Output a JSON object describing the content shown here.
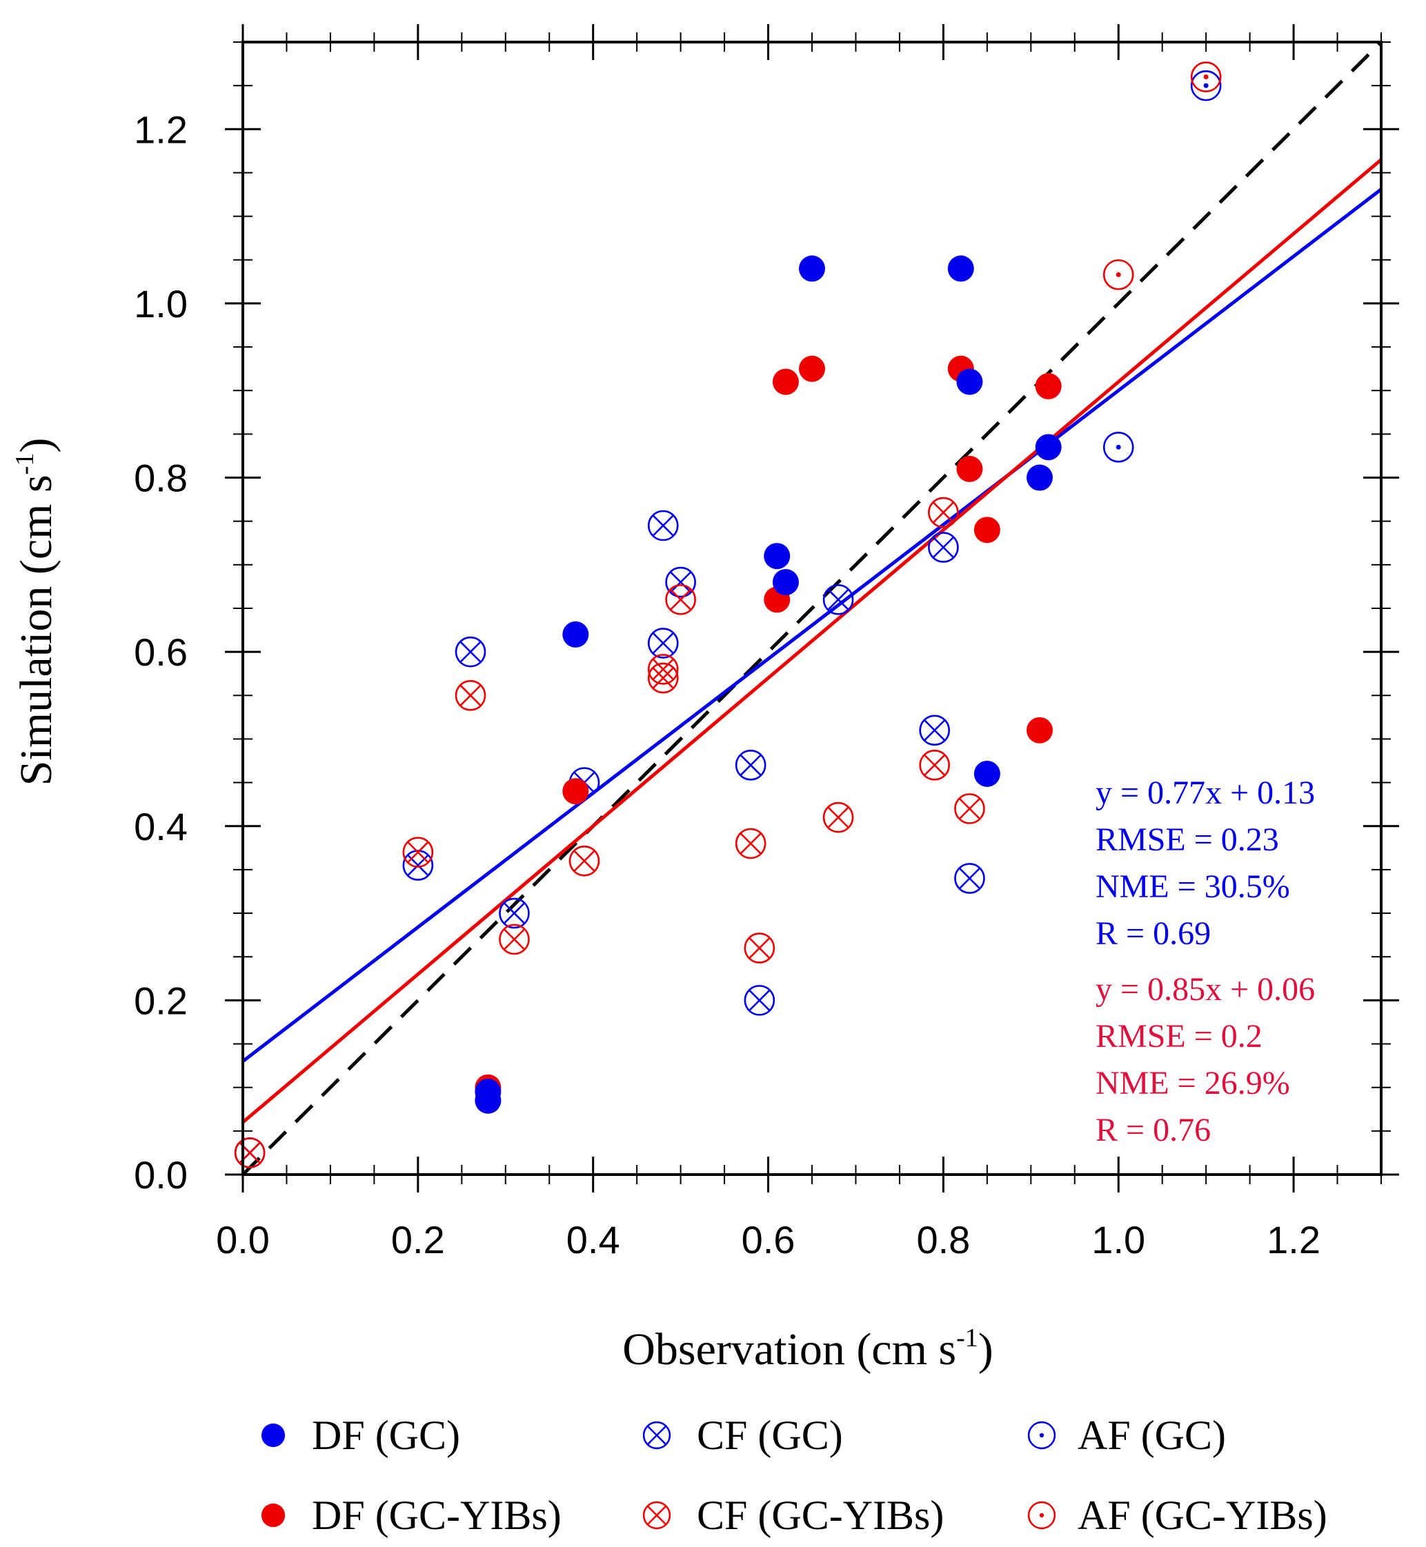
{
  "chart_data": {
    "type": "scatter",
    "title": "",
    "xlabel": "Observation (cm s-1)",
    "ylabel": "Simulation (cm s-1)",
    "xlabel_parts": {
      "base": "Observation (cm s",
      "sup": "-1",
      "end": ")"
    },
    "ylabel_parts": {
      "base": "Simulation (cm s",
      "sup": "-1",
      "end": ")"
    },
    "xlim": [
      0,
      1.3
    ],
    "ylim": [
      0,
      1.3
    ],
    "xticks": [
      "0.0",
      "0.2",
      "0.4",
      "0.6",
      "0.8",
      "1.0",
      "1.2"
    ],
    "yticks": [
      "0.0",
      "0.2",
      "0.4",
      "0.6",
      "0.8",
      "1.0",
      "1.2"
    ],
    "colors": {
      "gc": "#0000ee",
      "yibs": "#ee0000",
      "stats_yibs": "#e0103c",
      "one_to_one": "#000000"
    },
    "series": [
      {
        "name": "DF (GC)",
        "marker": "filled",
        "color": "#0000ee",
        "points": [
          [
            0.28,
            0.085
          ],
          [
            0.28,
            0.095
          ],
          [
            0.38,
            0.62
          ],
          [
            0.61,
            0.71
          ],
          [
            0.62,
            0.68
          ],
          [
            0.65,
            1.04
          ],
          [
            0.82,
            1.04
          ],
          [
            0.83,
            0.91
          ],
          [
            0.85,
            0.46
          ],
          [
            0.91,
            0.8
          ],
          [
            0.92,
            0.835
          ]
        ]
      },
      {
        "name": "DF (GC-YIBs)",
        "marker": "filled",
        "color": "#ee0000",
        "points": [
          [
            0.28,
            0.085
          ],
          [
            0.28,
            0.1
          ],
          [
            0.38,
            0.44
          ],
          [
            0.61,
            0.66
          ],
          [
            0.62,
            0.91
          ],
          [
            0.65,
            0.925
          ],
          [
            0.82,
            0.925
          ],
          [
            0.83,
            0.81
          ],
          [
            0.85,
            0.74
          ],
          [
            0.91,
            0.51
          ],
          [
            0.92,
            0.905
          ]
        ]
      },
      {
        "name": "CF (GC)",
        "marker": "cross",
        "color": "#0000ee",
        "points": [
          [
            0.008,
            0.025
          ],
          [
            0.2,
            0.355
          ],
          [
            0.26,
            0.6
          ],
          [
            0.31,
            0.3
          ],
          [
            0.39,
            0.45
          ],
          [
            0.48,
            0.745
          ],
          [
            0.48,
            0.61
          ],
          [
            0.5,
            0.68
          ],
          [
            0.58,
            0.47
          ],
          [
            0.59,
            0.2
          ],
          [
            0.68,
            0.66
          ],
          [
            0.79,
            0.51
          ],
          [
            0.8,
            0.72
          ],
          [
            0.83,
            0.34
          ]
        ]
      },
      {
        "name": "CF (GC-YIBs)",
        "marker": "cross",
        "color": "#ee0000",
        "points": [
          [
            0.008,
            0.025
          ],
          [
            0.2,
            0.37
          ],
          [
            0.26,
            0.55
          ],
          [
            0.31,
            0.27
          ],
          [
            0.39,
            0.36
          ],
          [
            0.48,
            0.58
          ],
          [
            0.48,
            0.57
          ],
          [
            0.5,
            0.66
          ],
          [
            0.58,
            0.38
          ],
          [
            0.59,
            0.26
          ],
          [
            0.68,
            0.41
          ],
          [
            0.79,
            0.47
          ],
          [
            0.8,
            0.76
          ],
          [
            0.83,
            0.42
          ]
        ]
      },
      {
        "name": "AF (GC)",
        "marker": "dot",
        "color": "#0000ee",
        "points": [
          [
            1.0,
            0.835
          ],
          [
            1.1,
            1.25
          ]
        ]
      },
      {
        "name": "AF (GC-YIBs)",
        "marker": "dot",
        "color": "#ee0000",
        "points": [
          [
            1.0,
            1.033
          ],
          [
            1.1,
            1.26
          ]
        ]
      }
    ],
    "fits": [
      {
        "name": "GC fit",
        "slope": 0.77,
        "intercept": 0.13,
        "color": "#0000ee"
      },
      {
        "name": "GC-YIBs fit",
        "slope": 0.85,
        "intercept": 0.06,
        "color": "#ee0000"
      }
    ],
    "one_to_one": {
      "slope": 1,
      "intercept": 0,
      "style": "dashed"
    },
    "annotations": {
      "gc": [
        "y = 0.77x + 0.13",
        "RMSE = 0.23",
        "NME = 30.5%",
        "R = 0.69"
      ],
      "yibs": [
        "y = 0.85x + 0.06",
        "RMSE = 0.2",
        "NME = 26.9%",
        "R = 0.76"
      ]
    },
    "legend": {
      "placement": "bottom",
      "items": [
        "DF (GC)",
        "CF (GC)",
        "AF (GC)",
        "DF (GC-YIBs)",
        "CF (GC-YIBs)",
        "AF (GC-YIBs)"
      ]
    }
  }
}
